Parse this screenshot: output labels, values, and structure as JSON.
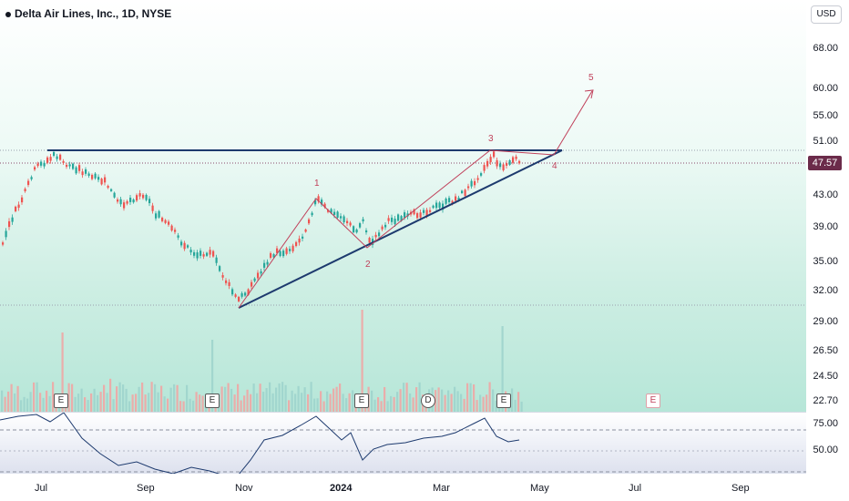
{
  "header": {
    "title": "Delta Air Lines, Inc., 1D, NYSE",
    "currency_button": "USD"
  },
  "price_scale": {
    "labels": [
      "68.00",
      "60.00",
      "55.00",
      "51.00",
      "43.00",
      "39.00",
      "35.00",
      "32.00",
      "29.00",
      "26.50",
      "24.50",
      "22.70"
    ],
    "current_price": "47.57",
    "current_price_color": "#6b2b4a"
  },
  "rsi_scale": {
    "labels": [
      "75.00",
      "50.00"
    ]
  },
  "time_axis": {
    "labels": [
      "Jul",
      "Sep",
      "Nov",
      "2024",
      "Mar",
      "May",
      "Jul",
      "Sep"
    ]
  },
  "wave_labels": [
    "1",
    "2",
    "3",
    "4",
    "5"
  ],
  "events": {
    "earnings": [
      "E",
      "E",
      "E",
      "E"
    ],
    "dividend": "D",
    "upcoming_earnings": "E"
  },
  "colors": {
    "up_candle": "#26a69a",
    "down_candle": "#ef5350",
    "trendline": "#1d3a6e",
    "wave_line": "#c0405a",
    "rsi_line": "#1d3a6e",
    "current_price_line": "#8b4a6a"
  }
}
